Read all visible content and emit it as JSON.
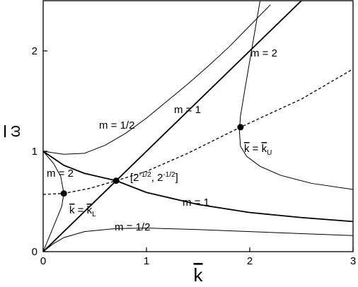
{
  "chart_data": {
    "type": "line",
    "x_label": "k",
    "y_label": "ω",
    "xlim": [
      0,
      3
    ],
    "ylim": [
      0,
      2.5
    ],
    "xticks": [
      0,
      1,
      2,
      3
    ],
    "yticks": [
      0,
      1,
      2
    ],
    "series": [
      {
        "color": "#000000",
        "line_style": "solid",
        "line_width": 1.8,
        "x": [
          0,
          2.5
        ],
        "values": [
          0,
          2.5
        ]
      },
      {
        "color": "#000000",
        "line_style": "solid",
        "line_width": 1.8,
        "x": [
          0,
          0.2,
          0.4,
          0.707,
          1.0,
          1.5,
          2.0,
          2.5,
          3.0
        ],
        "values": [
          1,
          0.86,
          0.78,
          0.707,
          0.59,
          0.47,
          0.39,
          0.34,
          0.3
        ]
      },
      {
        "color": "#000000",
        "line_style": "solid",
        "line_width": 1,
        "x": [
          0,
          0.2,
          0.4,
          0.6,
          0.8,
          1.0,
          1.2,
          1.4,
          1.6,
          1.8,
          2.0,
          2.2
        ],
        "values": [
          1,
          0.97,
          0.98,
          1.06,
          1.18,
          1.33,
          1.5,
          1.67,
          1.85,
          2.04,
          2.25,
          2.46
        ]
      },
      {
        "color": "#000000",
        "line_style": "solid",
        "line_width": 1,
        "x": [
          0,
          0.1,
          0.2,
          0.4,
          0.7,
          1.0,
          1.5,
          2.0,
          2.5,
          3.0
        ],
        "values": [
          0,
          0.08,
          0.14,
          0.2,
          0.23,
          0.235,
          0.22,
          0.2,
          0.18,
          0.16
        ]
      },
      {
        "color": "#000000",
        "line_style": "solid",
        "line_width": 1,
        "x": [
          0,
          0.1,
          0.17,
          0.2,
          0.18,
          0.12,
          0.06,
          0
        ],
        "values": [
          1,
          0.88,
          0.75,
          0.58,
          0.45,
          0.3,
          0.15,
          0
        ]
      },
      {
        "color": "#000000",
        "line_style": "solid",
        "line_width": 1,
        "x": [
          2.1,
          2.05,
          2.0,
          1.95,
          1.91,
          1.9,
          1.91,
          1.97,
          2.1,
          2.3,
          2.6,
          3.0
        ],
        "values": [
          2.5,
          2.2,
          1.9,
          1.6,
          1.35,
          1.2,
          1.05,
          0.95,
          0.85,
          0.76,
          0.68,
          0.62
        ]
      },
      {
        "color": "#000000",
        "line_style": "dashed",
        "line_width": 1.3,
        "x": [
          0,
          0.2,
          0.45,
          0.707,
          1.0,
          1.4,
          1.91,
          2.5,
          3.0
        ],
        "values": [
          0.57,
          0.58,
          0.63,
          0.707,
          0.8,
          0.98,
          1.24,
          1.52,
          1.82
        ]
      }
    ],
    "points": {
      "color": "#000000",
      "x": [
        0.2,
        0.707,
        1.91
      ],
      "values": [
        0.58,
        0.707,
        1.24
      ]
    },
    "annotations": [
      {
        "parts": [
          "m = 1/2"
        ]
      },
      {
        "parts": [
          "m = 1"
        ]
      },
      {
        "parts": [
          "m = 2"
        ]
      },
      {
        "parts": [
          "m = 2"
        ]
      },
      {
        "parts": [
          "[2",
          "-1/2",
          ", 2",
          "-1/2",
          "]"
        ]
      },
      {
        "parts": [
          "m = 1"
        ]
      },
      {
        "parts": [
          "m = 1/2"
        ]
      },
      {
        "parts": [
          "k",
          " = ",
          "k",
          "U"
        ]
      },
      {
        "parts": [
          "k",
          " = ",
          "k",
          "L"
        ]
      }
    ]
  }
}
